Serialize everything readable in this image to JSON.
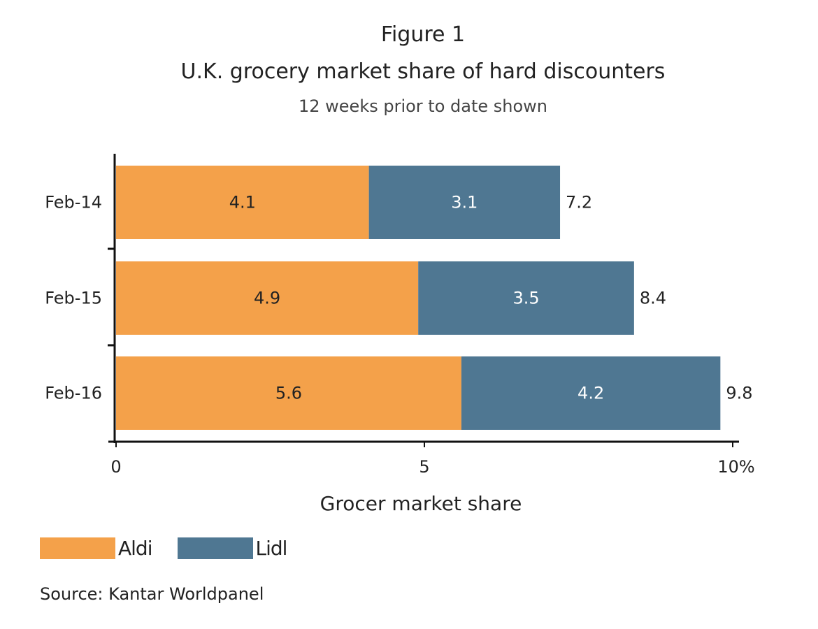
{
  "chart_data": {
    "type": "bar",
    "orientation": "horizontal",
    "stacked": true,
    "figure_label": "Figure 1",
    "title": "U.K. grocery market share of hard discounters",
    "subtitle": "12 weeks prior to date shown",
    "xlabel": "Grocer market share",
    "ylabel": "",
    "xlim": [
      0,
      10
    ],
    "x_ticks": [
      "0",
      "5",
      "10%"
    ],
    "categories": [
      "Feb-14",
      "Feb-15",
      "Feb-16"
    ],
    "series": [
      {
        "name": "Aldi",
        "color": "#F4A14A",
        "values": [
          4.1,
          4.9,
          5.6
        ],
        "labels": [
          "4.1",
          "4.9",
          "5.6"
        ]
      },
      {
        "name": "Lidl",
        "color": "#4F7792",
        "values": [
          3.1,
          3.5,
          4.2
        ],
        "labels": [
          "3.1",
          "3.5",
          "4.2"
        ]
      }
    ],
    "totals": [
      "7.2",
      "8.4",
      "9.8"
    ],
    "grid": false,
    "legend": "bottom-left",
    "source": "Source: Kantar Worldpanel"
  }
}
